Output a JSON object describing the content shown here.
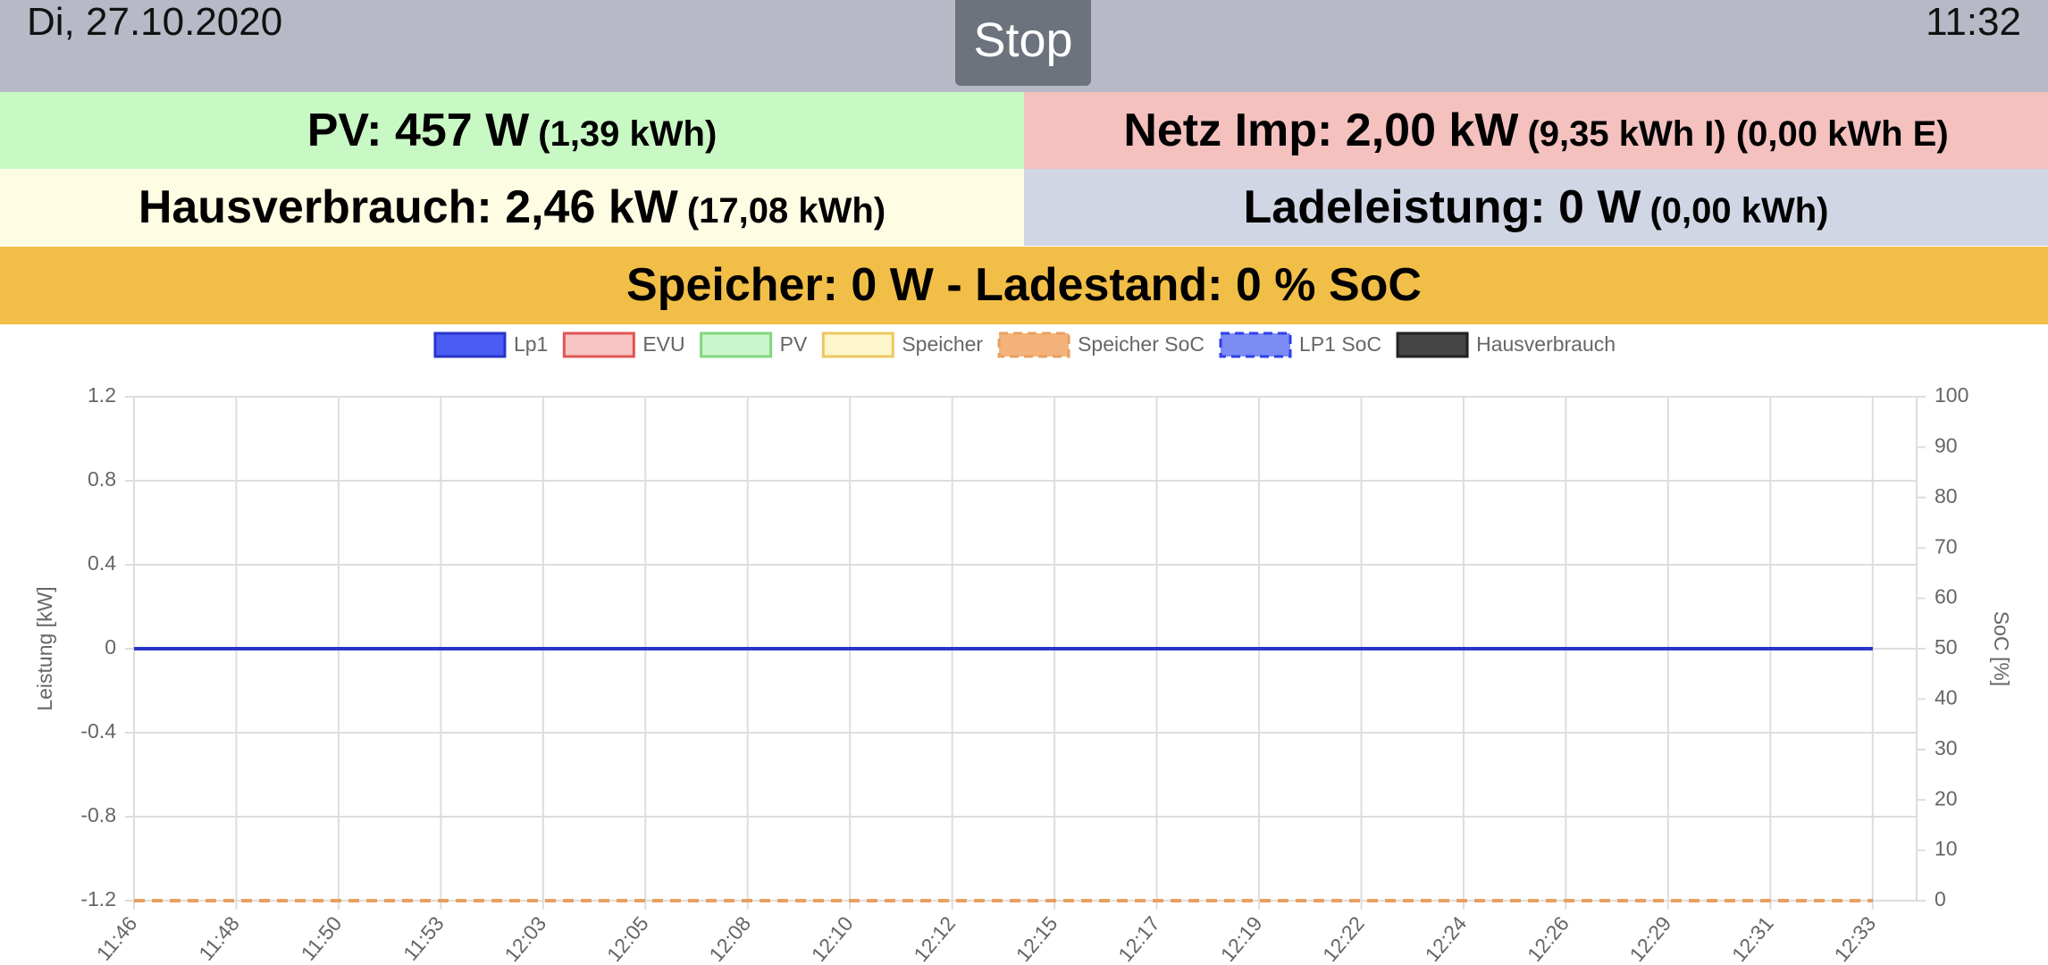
{
  "header": {
    "date": "Di, 27.10.2020",
    "button": "Stop",
    "time": "11:32"
  },
  "tiles": [
    {
      "main": "PV: 457 W",
      "sub": "(1,39 kWh)"
    },
    {
      "main": "Netz Imp: 2,00 kW",
      "sub": "(9,35 kWh I) (0,00 kWh E)"
    },
    {
      "main": "Hausverbrauch: 2,46 kW",
      "sub": "(17,08 kWh)"
    },
    {
      "main": "Ladeleistung: 0 W",
      "sub": "(0,00 kWh)"
    },
    {
      "main": "Speicher: 0 W - Ladestand: 0 % SoC"
    }
  ],
  "chart_data": {
    "type": "line",
    "ylabel": "Leistung [kW]",
    "y2label": "SoC [%]",
    "categories": [
      "11:46",
      "11:48",
      "11:50",
      "11:53",
      "12:03",
      "12:05",
      "12:08",
      "12:10",
      "12:12",
      "12:15",
      "12:17",
      "12:19",
      "12:22",
      "12:24",
      "12:26",
      "12:29",
      "12:31",
      "12:33"
    ],
    "series": [
      {
        "name": "Lp1",
        "color": "#2a35c8",
        "fill": "#4b5cf5",
        "values": [
          0,
          0,
          0,
          0,
          0,
          0,
          0,
          0,
          0,
          0,
          0,
          0,
          0,
          0,
          0,
          0,
          0,
          0
        ]
      },
      {
        "name": "EVU",
        "color": "#e05555",
        "fill": "#f8c4c4",
        "values": [
          0,
          0,
          0,
          0,
          0,
          0,
          0,
          0,
          0,
          0,
          0,
          0,
          0,
          0,
          0,
          0,
          0,
          0
        ]
      },
      {
        "name": "PV",
        "color": "#80d880",
        "fill": "#cbf6cb",
        "values": [
          0,
          0,
          0,
          0,
          0,
          0,
          0,
          0,
          0,
          0,
          0,
          0,
          0,
          0,
          0,
          0,
          0,
          0
        ]
      },
      {
        "name": "Speicher",
        "color": "#ecc860",
        "fill": "#fdf5cc",
        "values": [
          0,
          0,
          0,
          0,
          0,
          0,
          0,
          0,
          0,
          0,
          0,
          0,
          0,
          0,
          0,
          0,
          0,
          0
        ]
      },
      {
        "name": "Speicher SoC",
        "color": "#e8a060",
        "fill": "#f2b27a",
        "dashed": true,
        "axis": "y2",
        "values": [
          0,
          0,
          0,
          0,
          0,
          0,
          0,
          0,
          0,
          0,
          0,
          0,
          0,
          0,
          0,
          0,
          0,
          0
        ]
      },
      {
        "name": "LP1 SoC",
        "color": "#3040e8",
        "fill": "#7d8cf5",
        "dashed": true,
        "axis": "y2",
        "values": [
          0,
          0,
          0,
          0,
          0,
          0,
          0,
          0,
          0,
          0,
          0,
          0,
          0,
          0,
          0,
          0,
          0,
          0
        ]
      },
      {
        "name": "Hausverbrauch",
        "color": "#222222",
        "fill": "#444444",
        "values": [
          0,
          0,
          0,
          0,
          0,
          0,
          0,
          0,
          0,
          0,
          0,
          0,
          0,
          0,
          0,
          0,
          0,
          0
        ]
      }
    ],
    "ylim": [
      -1.2,
      1.2
    ],
    "yticks": [
      -1.2,
      -0.8,
      -0.4,
      0,
      0.4,
      0.8,
      1.2
    ],
    "y2lim": [
      0,
      100
    ],
    "y2ticks": [
      0,
      10,
      20,
      30,
      40,
      50,
      60,
      70,
      80,
      90,
      100
    ],
    "grid": true,
    "legend": "top"
  }
}
